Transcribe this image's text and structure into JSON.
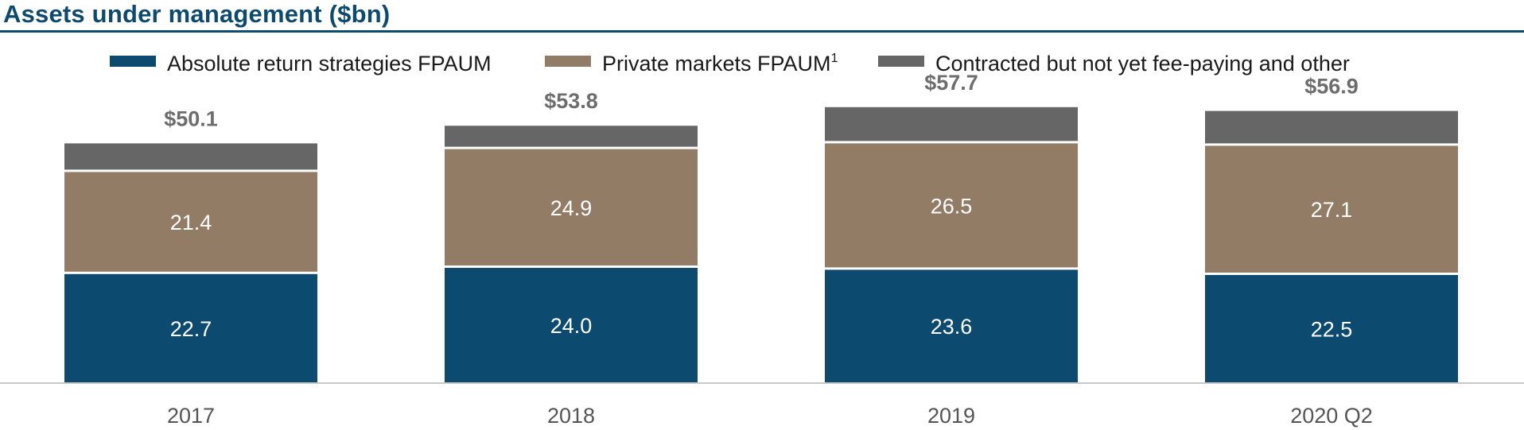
{
  "chart_data": {
    "type": "bar",
    "stacked": true,
    "title": "Assets under management ($bn)",
    "categories": [
      "2017",
      "2018",
      "2019",
      "2020 Q2"
    ],
    "series": [
      {
        "name": "Absolute return strategies FPAUM",
        "color": "#0d4a70",
        "values": [
          22.7,
          24.0,
          23.6,
          22.5
        ],
        "labels": [
          "22.7",
          "24.0",
          "23.6",
          "22.5"
        ]
      },
      {
        "name": "Private markets FPAUM",
        "superscript": "1",
        "color": "#927c66",
        "values": [
          21.4,
          24.9,
          26.5,
          27.1
        ],
        "labels": [
          "21.4",
          "24.9",
          "26.5",
          "27.1"
        ]
      },
      {
        "name": "Contracted but not yet fee-paying and other",
        "color": "#666666",
        "values": [
          6.0,
          4.9,
          7.6,
          7.3
        ]
      }
    ],
    "totals": [
      "$50.1",
      "$53.8",
      "$57.7",
      "$56.9"
    ],
    "total_values": [
      50.1,
      53.8,
      57.7,
      56.9
    ],
    "ylim": [
      0,
      60
    ],
    "grid": false,
    "legend_position": "top"
  }
}
